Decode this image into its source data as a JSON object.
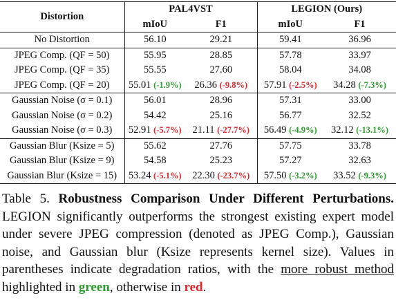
{
  "table": {
    "header": {
      "first": "Distortion",
      "groups": [
        "PAL4VST",
        "LEGION (Ours)"
      ],
      "sub": [
        "mIoU",
        "F1",
        "mIoU",
        "F1"
      ]
    },
    "groups": [
      [
        {
          "label": "No Distortion",
          "cells": [
            {
              "value": "56.10"
            },
            {
              "value": "29.21"
            },
            {
              "value": "59.41"
            },
            {
              "value": "36.96"
            }
          ]
        }
      ],
      [
        {
          "label": "JPEG Comp. (QF = 50)",
          "cells": [
            {
              "value": "55.95"
            },
            {
              "value": "28.85"
            },
            {
              "value": "57.78"
            },
            {
              "value": "33.97"
            }
          ]
        },
        {
          "label": "JPEG Comp. (QF = 35)",
          "cells": [
            {
              "value": "55.55"
            },
            {
              "value": "27.60"
            },
            {
              "value": "58.04"
            },
            {
              "value": "34.08"
            }
          ]
        },
        {
          "label": "JPEG Comp. (QF = 20)",
          "cells": [
            {
              "value": "55.01",
              "delta": "(-1.9%)",
              "color": "#2a9d2a"
            },
            {
              "value": "26.36",
              "delta": "(-9.8%)",
              "color": "#e0262b"
            },
            {
              "value": "57.91",
              "delta": "(-2.5%)",
              "color": "#e0262b"
            },
            {
              "value": "34.28",
              "delta": "(-7.3%)",
              "color": "#2a9d2a"
            }
          ]
        }
      ],
      [
        {
          "label": "Gaussian Noise (σ = 0.1)",
          "cells": [
            {
              "value": "56.01"
            },
            {
              "value": "28.96"
            },
            {
              "value": "57.31"
            },
            {
              "value": "33.00"
            }
          ]
        },
        {
          "label": "Gaussian Noise (σ = 0.2)",
          "cells": [
            {
              "value": "54.42"
            },
            {
              "value": "25.16"
            },
            {
              "value": "56.77"
            },
            {
              "value": "32.52"
            }
          ]
        },
        {
          "label": "Gaussian Noise (σ = 0.3)",
          "cells": [
            {
              "value": "52.91",
              "delta": "(-5.7%)",
              "color": "#e0262b"
            },
            {
              "value": "21.11",
              "delta": "(-27.7%)",
              "color": "#e0262b"
            },
            {
              "value": "56.49",
              "delta": "(-4.9%)",
              "color": "#2a9d2a"
            },
            {
              "value": "32.12",
              "delta": "(-13.1%)",
              "color": "#2a9d2a"
            }
          ]
        }
      ],
      [
        {
          "label": "Gaussian Blur (Ksize = 5)",
          "cells": [
            {
              "value": "55.62"
            },
            {
              "value": "27.76"
            },
            {
              "value": "57.75"
            },
            {
              "value": "33.78"
            }
          ]
        },
        {
          "label": "Gaussian Blur (Ksize = 9)",
          "cells": [
            {
              "value": "54.58"
            },
            {
              "value": "25.23"
            },
            {
              "value": "57.27"
            },
            {
              "value": "32.63"
            }
          ]
        },
        {
          "label": "Gaussian Blur (Ksize = 15)",
          "cells": [
            {
              "value": "53.24",
              "delta": "(-5.1%)",
              "color": "#e0262b"
            },
            {
              "value": "22.30",
              "delta": "(-23.7%)",
              "color": "#e0262b"
            },
            {
              "value": "57.50",
              "delta": "(-3.2%)",
              "color": "#2a9d2a"
            },
            {
              "value": "33.52",
              "delta": "(-9.3%)",
              "color": "#2a9d2a"
            }
          ]
        }
      ]
    ]
  },
  "caption": [
    {
      "text": "Table 5.",
      "style": "plain"
    },
    {
      "text": "Robustness Comparison Under Different Perturbations.",
      "style": "bold"
    },
    {
      "text": "LEGION significantly outperforms the strongest existing expert model under severe JPEG compression (denoted as JPEG Comp.), Gaussian noise, and Gaussian blur (Ksize represents kernel size). Values in parentheses indicate degradation ratios, with the",
      "style": "plain"
    },
    {
      "text": "more robust method",
      "style": "underline"
    },
    {
      "text": "highlighted in",
      "style": "plain"
    },
    {
      "text": "green",
      "style": "green"
    },
    {
      "text": ", otherwise in",
      "style": "plain"
    },
    {
      "text": "red",
      "style": "red"
    },
    {
      "text": ".",
      "style": "plain"
    }
  ]
}
